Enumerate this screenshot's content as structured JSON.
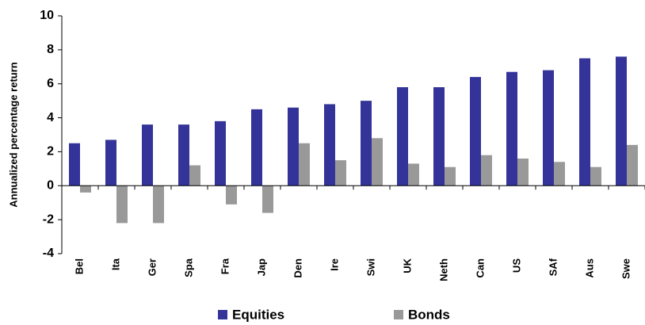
{
  "chart_data": {
    "type": "bar",
    "y_label": "Annualized percentage return",
    "categories": [
      "Bel",
      "Ita",
      "Ger",
      "Spa",
      "Fra",
      "Jap",
      "Den",
      "Ire",
      "Swi",
      "UK",
      "Neth",
      "Can",
      "US",
      "SAf",
      "Aus",
      "Swe"
    ],
    "series": [
      {
        "name": "Equities",
        "color": "#333399",
        "values": [
          2.5,
          2.7,
          3.6,
          3.6,
          3.8,
          4.5,
          4.6,
          4.8,
          5.0,
          5.8,
          5.8,
          6.4,
          6.7,
          6.8,
          7.5,
          7.6
        ]
      },
      {
        "name": "Bonds",
        "color": "#999999",
        "values": [
          -0.4,
          -2.2,
          -2.2,
          1.2,
          -1.1,
          -1.6,
          2.5,
          1.5,
          2.8,
          1.3,
          1.1,
          1.8,
          1.6,
          1.4,
          1.1,
          2.4
        ]
      }
    ],
    "ylim": [
      -4,
      10
    ],
    "yticks": [
      -4,
      -2,
      0,
      2,
      4,
      6,
      8,
      10
    ],
    "grid": false,
    "legend": "bottom"
  }
}
